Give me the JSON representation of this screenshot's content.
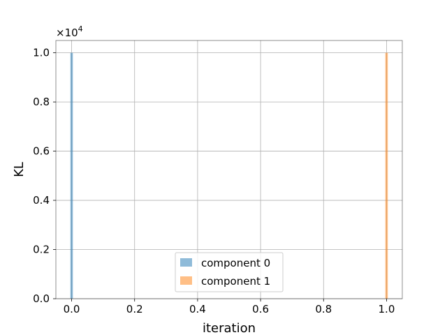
{
  "chart_data": {
    "type": "bar",
    "xlabel": "iteration",
    "ylabel": "KL",
    "y_scale_label": "×10",
    "y_scale_exponent": "4",
    "xlim": [
      -0.05,
      1.05
    ],
    "ylim": [
      0,
      1.05
    ],
    "bar_width": 0.008,
    "x_ticks": [
      0.0,
      0.2,
      0.4,
      0.6,
      0.8,
      1.0
    ],
    "x_tick_labels": [
      "0.0",
      "0.2",
      "0.4",
      "0.6",
      "0.8",
      "1.0"
    ],
    "y_ticks": [
      0.0,
      0.2,
      0.4,
      0.6,
      0.8,
      1.0
    ],
    "y_tick_labels": [
      "0.0",
      "0.2",
      "0.4",
      "0.6",
      "0.8",
      "1.0"
    ],
    "grid": true,
    "legend_position": "lower center",
    "series": [
      {
        "name": "component 0",
        "color": "#1f77b4",
        "alpha": 0.5,
        "x": [
          0.0
        ],
        "values": [
          1.0
        ]
      },
      {
        "name": "component 1",
        "color": "#ff7f0e",
        "alpha": 0.5,
        "x": [
          1.0
        ],
        "values": [
          1.0
        ]
      }
    ]
  }
}
